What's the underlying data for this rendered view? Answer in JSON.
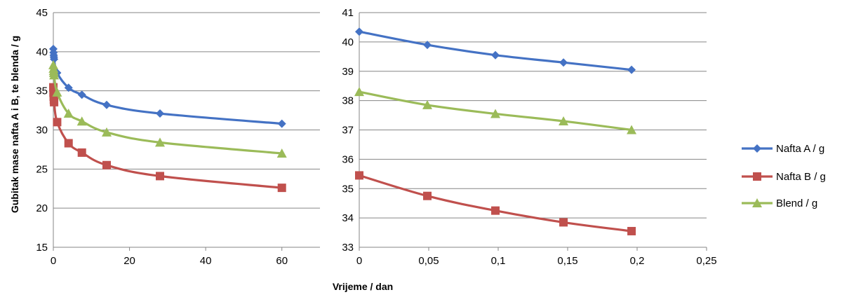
{
  "chart_data": [
    {
      "type": "line",
      "xlabel": "Vrijeme / dan",
      "ylabel": "Gubitak mase nafta A i B, te blenda / g",
      "xlim": [
        0,
        70
      ],
      "ylim": [
        15,
        45
      ],
      "xticks": [
        "0",
        "20",
        "40",
        "60"
      ],
      "yticks": [
        "15",
        "20",
        "25",
        "30",
        "35",
        "40",
        "45"
      ],
      "grid": "horizontal",
      "series": [
        {
          "name": "Nafta A / g",
          "color": "#4472C4",
          "marker": "diamond",
          "x": [
            0,
            0.05,
            0.1,
            0.15,
            0.2,
            1,
            4,
            7.5,
            14,
            28,
            60
          ],
          "y": [
            40.35,
            39.9,
            39.55,
            39.3,
            39.05,
            37.3,
            35.4,
            34.5,
            33.2,
            32.1,
            30.8
          ]
        },
        {
          "name": "Nafta B / g",
          "color": "#C0504D",
          "marker": "square",
          "x": [
            0,
            0.05,
            0.1,
            0.15,
            0.2,
            1,
            4,
            7.5,
            14,
            28,
            60
          ],
          "y": [
            35.45,
            34.75,
            34.25,
            33.85,
            33.55,
            31.0,
            28.3,
            27.1,
            25.5,
            24.1,
            22.6
          ]
        },
        {
          "name": "Blend / g",
          "color": "#9BBB59",
          "marker": "triangle",
          "x": [
            0,
            0.05,
            0.1,
            0.15,
            0.2,
            1,
            4,
            7.5,
            14,
            28,
            60
          ],
          "y": [
            38.3,
            37.85,
            37.55,
            37.3,
            37.0,
            34.8,
            32.1,
            31.1,
            29.7,
            28.4,
            27.0
          ]
        }
      ]
    },
    {
      "type": "line",
      "xlabel": "",
      "ylabel": "",
      "xlim": [
        0,
        0.25
      ],
      "ylim": [
        33,
        41
      ],
      "xticks": [
        "0",
        "0,05",
        "0,1",
        "0,15",
        "0,2",
        "0,25"
      ],
      "yticks": [
        "33",
        "34",
        "35",
        "36",
        "37",
        "38",
        "39",
        "40",
        "41"
      ],
      "grid": "horizontal",
      "series": [
        {
          "name": "Nafta A / g",
          "color": "#4472C4",
          "marker": "diamond",
          "x": [
            0,
            0.049,
            0.098,
            0.147,
            0.196
          ],
          "y": [
            40.35,
            39.9,
            39.55,
            39.3,
            39.05
          ]
        },
        {
          "name": "Nafta B / g",
          "color": "#C0504D",
          "marker": "square",
          "x": [
            0,
            0.049,
            0.098,
            0.147,
            0.196
          ],
          "y": [
            35.45,
            34.75,
            34.25,
            33.85,
            33.55
          ]
        },
        {
          "name": "Blend / g",
          "color": "#9BBB59",
          "marker": "triangle",
          "x": [
            0,
            0.049,
            0.098,
            0.147,
            0.196
          ],
          "y": [
            38.3,
            37.85,
            37.55,
            37.3,
            37.0
          ]
        }
      ]
    }
  ],
  "legend": {
    "placement": "right",
    "entries": [
      {
        "label": "Nafta A / g",
        "color": "#4472C4",
        "marker": "diamond"
      },
      {
        "label": "Nafta B / g",
        "color": "#C0504D",
        "marker": "square"
      },
      {
        "label": "Blend / g",
        "color": "#9BBB59",
        "marker": "triangle"
      }
    ]
  }
}
